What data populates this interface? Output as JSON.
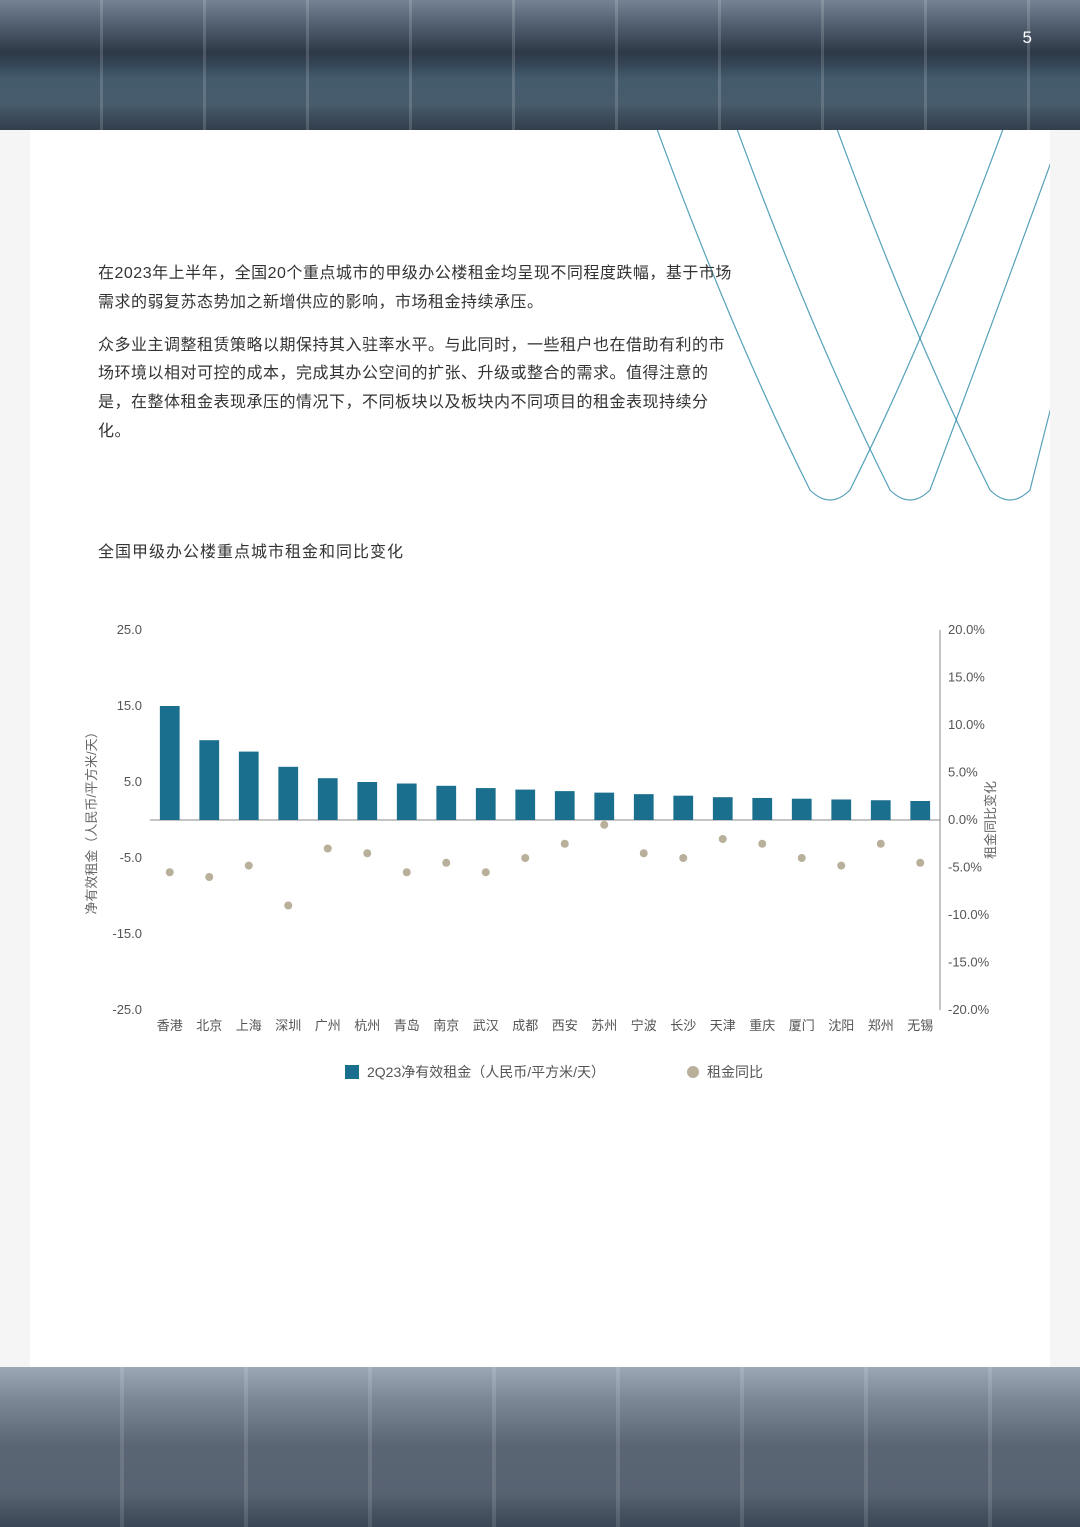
{
  "page_number": "5",
  "paragraphs": [
    "在2023年上半年，全国20个重点城市的甲级办公楼租金均呈现不同程度跌幅，基于市场需求的弱复苏态势加之新增供应的影响，市场租金持续承压。",
    "众多业主调整租赁策略以期保持其入驻率水平。与此同时，一些租户也在借助有利的市场环境以相对可控的成本，完成其办公空间的扩张、升级或整合的需求。值得注意的是，在整体租金表现承压的情况下，不同板块以及板块内不同项目的租金表现持续分化。"
  ],
  "chart_title": "全国甲级办公楼重点城市租金和同比变化",
  "chart": {
    "type": "bar+scatter",
    "categories": [
      "香港",
      "北京",
      "上海",
      "深圳",
      "广州",
      "杭州",
      "青岛",
      "南京",
      "武汉",
      "成都",
      "西安",
      "苏州",
      "宁波",
      "长沙",
      "天津",
      "重庆",
      "厦门",
      "沈阳",
      "郑州",
      "无锡"
    ],
    "bar_values": [
      15.0,
      10.5,
      9.0,
      7.0,
      5.5,
      5.0,
      4.8,
      4.5,
      4.2,
      4.0,
      3.8,
      3.6,
      3.4,
      3.2,
      3.0,
      2.9,
      2.8,
      2.7,
      2.6,
      2.5
    ],
    "dot_values_pct": [
      -5.5,
      -6.0,
      -4.8,
      -9.0,
      -3.0,
      -3.5,
      -5.5,
      -4.5,
      -5.5,
      -4.0,
      -2.5,
      -0.5,
      -3.5,
      -4.0,
      -2.0,
      -2.5,
      -4.0,
      -4.8,
      -2.5,
      -4.5
    ],
    "left_axis": {
      "label": "净有效租金（人民币/平方米/天）",
      "min": -25.0,
      "max": 25.0,
      "ticks": [
        25.0,
        15.0,
        5.0,
        -5.0,
        -15.0,
        -25.0
      ]
    },
    "right_axis": {
      "label": "租金同比变化",
      "min": -20.0,
      "max": 20.0,
      "ticks": [
        20.0,
        15.0,
        10.0,
        5.0,
        0.0,
        -5.0,
        -10.0,
        -15.0,
        -20.0
      ],
      "format": "pct"
    },
    "colors": {
      "bar": "#1a6e8e",
      "dot": "#b8b09a",
      "axis_line": "#888888",
      "tick_text": "#555555",
      "label_text": "#666666",
      "grid": "none",
      "background": "#ffffff"
    },
    "legend": [
      {
        "swatch": "bar",
        "label": "2Q23净有效租金（人民币/平方米/天）"
      },
      {
        "swatch": "dot",
        "label": "租金同比"
      }
    ],
    "bar_width_ratio": 0.5,
    "font_size_axis": 13,
    "font_size_legend": 14,
    "curve_color": "#2a8aa8"
  }
}
